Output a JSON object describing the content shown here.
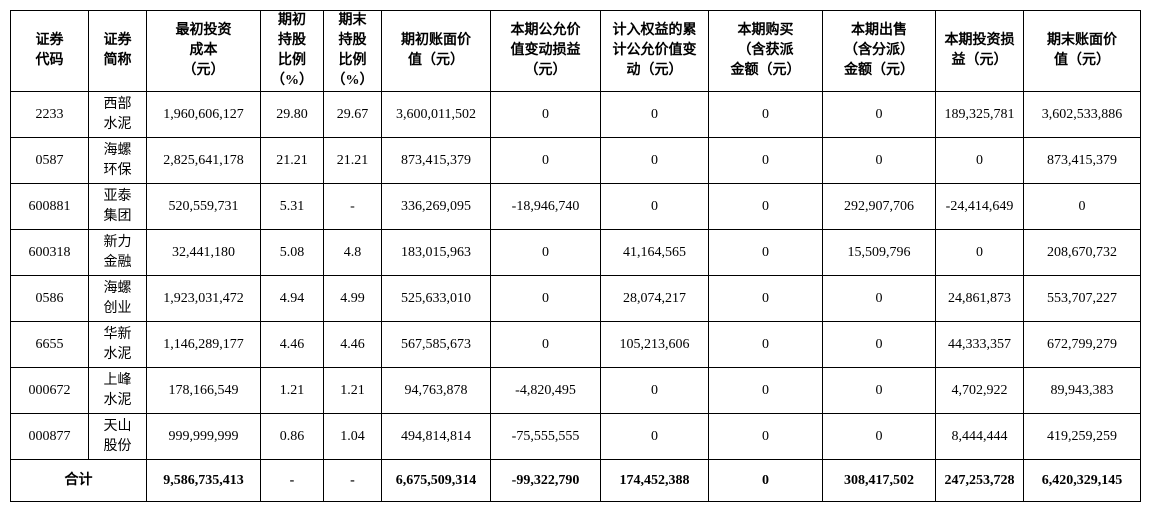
{
  "table": {
    "header": [
      [
        "证券",
        "代码"
      ],
      [
        "证券",
        "简称"
      ],
      [
        "最初投资",
        "成本",
        "（元）"
      ],
      [
        "期初",
        "持股",
        "比例",
        "（%）"
      ],
      [
        "期末",
        "持股",
        "比例",
        "（%）"
      ],
      [
        "期初账面价",
        "值（元）"
      ],
      [
        "本期公允价",
        "值变动损益",
        "（元）"
      ],
      [
        "计入权益的累",
        "计公允价值变",
        "动（元）"
      ],
      [
        "本期购买",
        "（含获派",
        "金额（元）"
      ],
      [
        "本期出售",
        "（含分派）",
        "金额（元）"
      ],
      [
        "本期投资损",
        "益（元）"
      ],
      [
        "期末账面价",
        "值（元）"
      ]
    ],
    "rows": [
      [
        "2233",
        [
          "西部",
          "水泥"
        ],
        "1,960,606,127",
        "29.80",
        "29.67",
        "3,600,011,502",
        "0",
        "0",
        "0",
        "0",
        "189,325,781",
        "3,602,533,886"
      ],
      [
        "0587",
        [
          "海螺",
          "环保"
        ],
        "2,825,641,178",
        "21.21",
        "21.21",
        "873,415,379",
        "0",
        "0",
        "0",
        "0",
        "0",
        "873,415,379"
      ],
      [
        "600881",
        [
          "亚泰",
          "集团"
        ],
        "520,559,731",
        "5.31",
        "-",
        "336,269,095",
        "-18,946,740",
        "0",
        "0",
        "292,907,706",
        "-24,414,649",
        "0"
      ],
      [
        "600318",
        [
          "新力",
          "金融"
        ],
        "32,441,180",
        "5.08",
        "4.8",
        "183,015,963",
        "0",
        "41,164,565",
        "0",
        "15,509,796",
        "0",
        "208,670,732"
      ],
      [
        "0586",
        [
          "海螺",
          "创业"
        ],
        "1,923,031,472",
        "4.94",
        "4.99",
        "525,633,010",
        "0",
        "28,074,217",
        "0",
        "0",
        "24,861,873",
        "553,707,227"
      ],
      [
        "6655",
        [
          "华新",
          "水泥"
        ],
        "1,146,289,177",
        "4.46",
        "4.46",
        "567,585,673",
        "0",
        "105,213,606",
        "0",
        "0",
        "44,333,357",
        "672,799,279"
      ],
      [
        "000672",
        [
          "上峰",
          "水泥"
        ],
        "178,166,549",
        "1.21",
        "1.21",
        "94,763,878",
        "-4,820,495",
        "0",
        "0",
        "0",
        "4,702,922",
        "89,943,383"
      ],
      [
        "000877",
        [
          "天山",
          "股份"
        ],
        "999,999,999",
        "0.86",
        "1.04",
        "494,814,814",
        "-75,555,555",
        "0",
        "0",
        "0",
        "8,444,444",
        "419,259,259"
      ]
    ],
    "total": {
      "label": "合计",
      "cells": [
        "9,586,735,413",
        "-",
        "-",
        "6,675,509,314",
        "-99,322,790",
        "174,452,388",
        "0",
        "308,417,502",
        "247,253,728",
        "6,420,329,145"
      ]
    }
  }
}
